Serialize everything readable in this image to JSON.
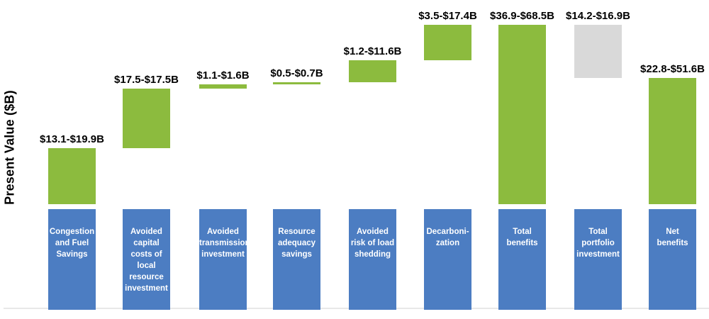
{
  "chart_data": {
    "type": "bar",
    "subtype": "waterfall",
    "title": "",
    "ylabel": "Present Value ($B)",
    "xlabel": "",
    "unit": "$B",
    "grid": false,
    "legend": false,
    "axis_baseline_value": 0,
    "categories": [
      "Congestion and Fuel Savings",
      "Avoided capital costs of local resource investment",
      "Avoided transmission investment",
      "Resource adequacy savings",
      "Avoided risk of load shedding",
      "Decarbonization",
      "Total benefits",
      "Total portfolio investment",
      "Net benefits"
    ],
    "bars": [
      {
        "category": "Congestion and Fuel Savings",
        "category_lines": [
          "Congestion",
          "and Fuel",
          "Savings"
        ],
        "value_label": "$13.1-$19.9B",
        "low": 13.1,
        "high": 19.9,
        "mode": "rise",
        "color_role": "benefit"
      },
      {
        "category": "Avoided capital costs of local resource investment",
        "category_lines": [
          "Avoided",
          "capital",
          "costs of",
          "local",
          "resource",
          "investment"
        ],
        "value_label": "$17.5-$17.5B",
        "low": 17.5,
        "high": 17.5,
        "mode": "rise",
        "color_role": "benefit"
      },
      {
        "category": "Avoided transmission investment",
        "category_lines": [
          "Avoided",
          "transmission",
          "investment"
        ],
        "value_label": "$1.1-$1.6B",
        "low": 1.1,
        "high": 1.6,
        "mode": "rise",
        "color_role": "benefit"
      },
      {
        "category": "Resource adequacy savings",
        "category_lines": [
          "Resource",
          "adequacy",
          "savings"
        ],
        "value_label": "$0.5-$0.7B",
        "low": 0.5,
        "high": 0.7,
        "mode": "rise",
        "color_role": "benefit"
      },
      {
        "category": "Avoided risk of load shedding",
        "category_lines": [
          "Avoided",
          "risk of load",
          "shedding"
        ],
        "value_label": "$1.2-$11.6B",
        "low": 1.2,
        "high": 11.6,
        "mode": "rise",
        "color_role": "benefit"
      },
      {
        "category": "Decarbonization",
        "category_lines": [
          "Decarboni-",
          "zation"
        ],
        "value_label": "$3.5-$17.4B",
        "low": 3.5,
        "high": 17.4,
        "mode": "rise",
        "color_role": "benefit"
      },
      {
        "category": "Total benefits",
        "category_lines": [
          "Total",
          "benefits"
        ],
        "value_label": "$36.9-$68.5B",
        "low": 36.9,
        "high": 68.5,
        "mode": "total",
        "color_role": "benefit"
      },
      {
        "category": "Total portfolio investment",
        "category_lines": [
          "Total",
          "portfolio",
          "investment"
        ],
        "value_label": "$14.2-$16.9B",
        "low": 14.2,
        "high": 16.9,
        "mode": "fall",
        "color_role": "investment"
      },
      {
        "category": "Net benefits",
        "category_lines": [
          "Net",
          "benefits"
        ],
        "value_label": "$22.8-$51.6B",
        "low": 22.8,
        "high": 51.6,
        "mode": "total",
        "color_role": "benefit"
      }
    ],
    "colors": {
      "benefit": "#8CBB3E",
      "investment": "#D9D9D9",
      "category_box": "#4C7DC2",
      "category_text": "#FFFFFF",
      "value_label_text": "#000000",
      "axis_line": "#E8E8E8"
    }
  }
}
